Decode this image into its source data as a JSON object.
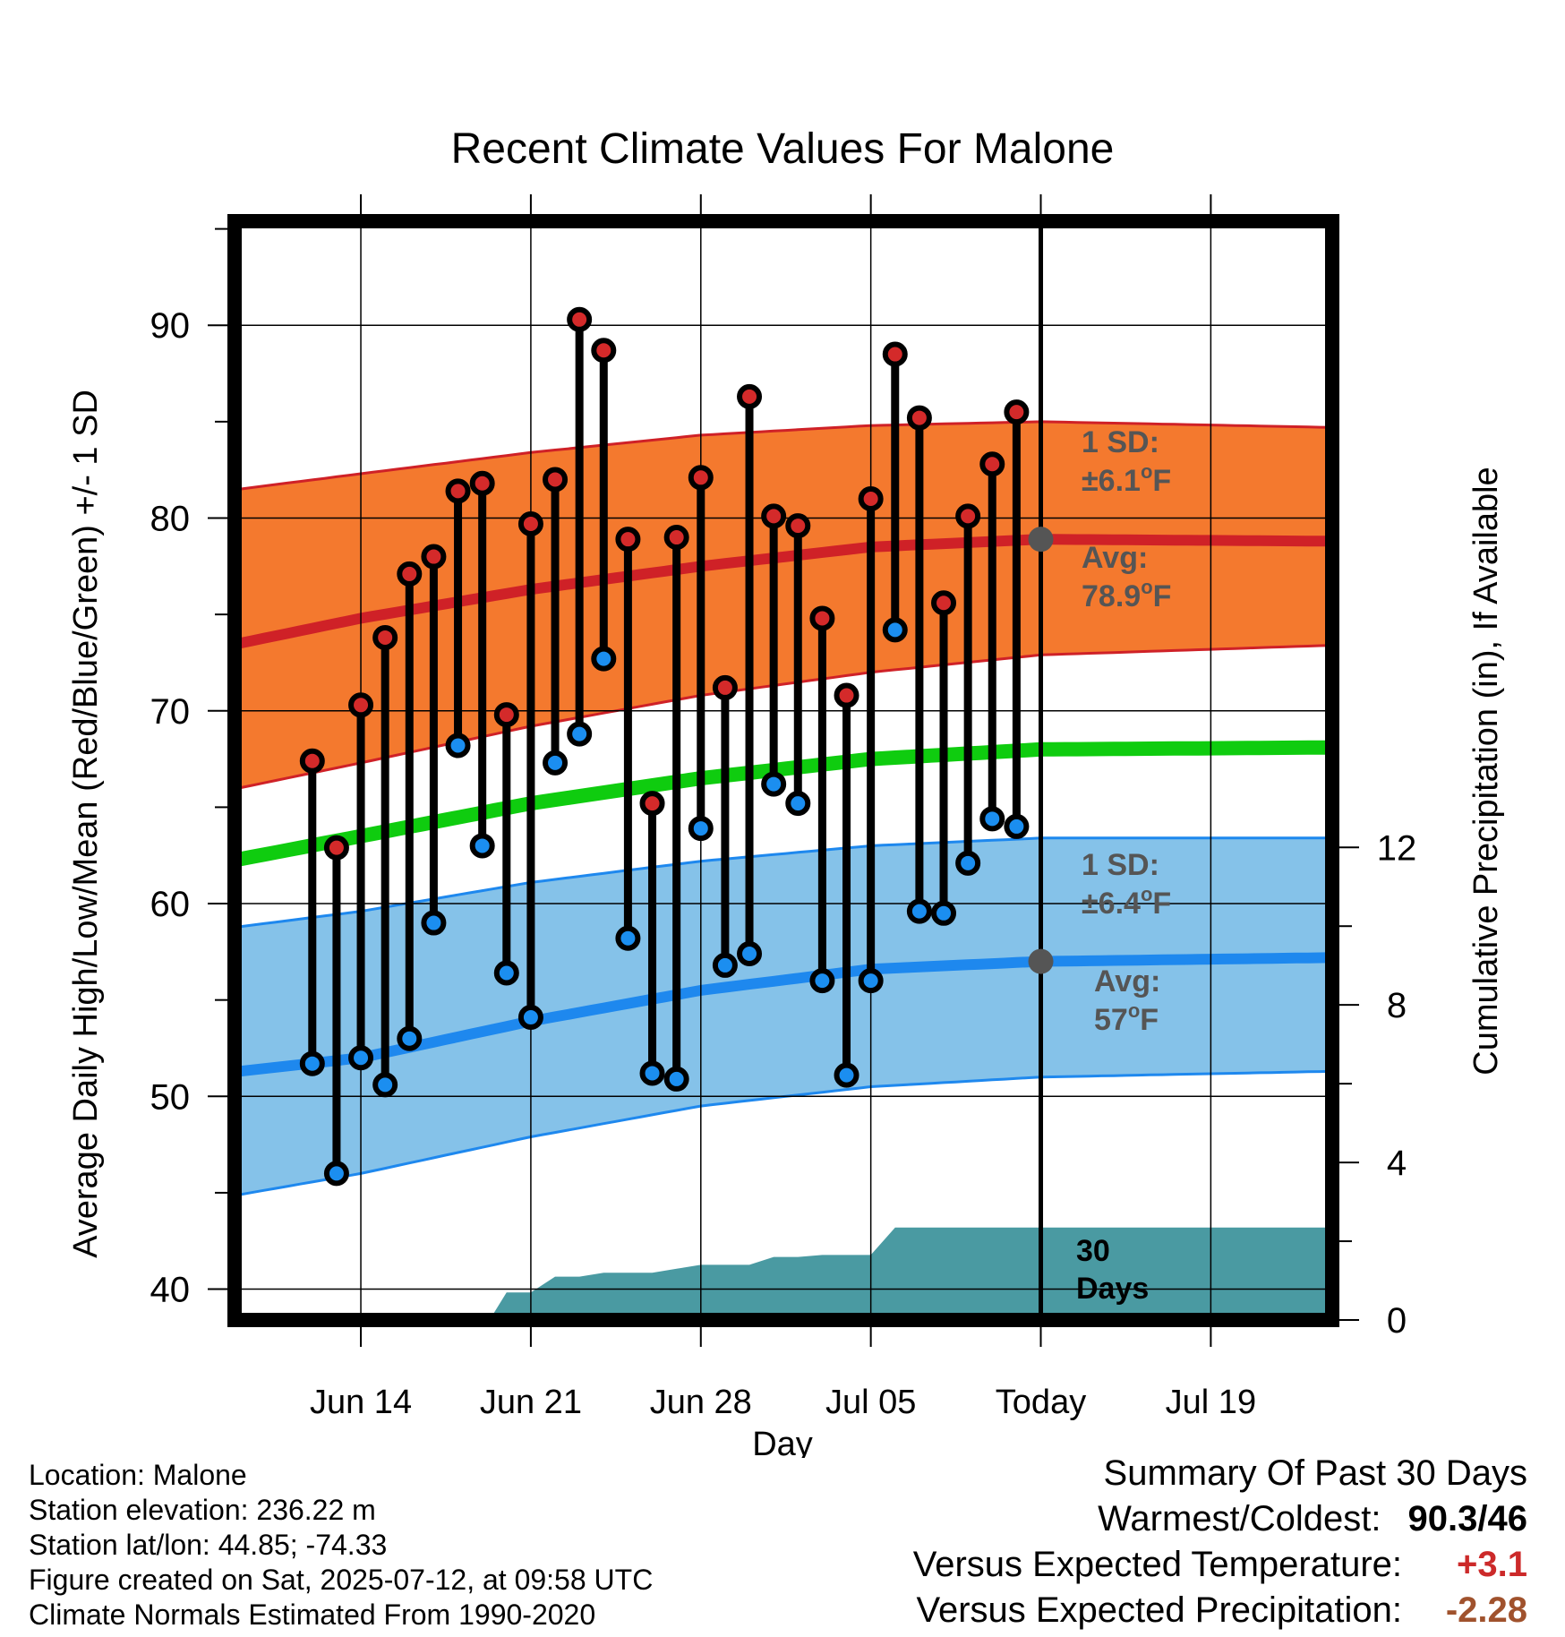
{
  "chart_data": {
    "type": "line",
    "title": "Recent Climate Values For Malone",
    "xlabel": "Day",
    "ylabel_left": "Average Daily High/Low/Mean (Red/Blue/Green) +/- 1 SD",
    "ylabel_right": "Cumulative Precipitation (in), If Available",
    "x_range_days": [
      -33.2,
      12
    ],
    "ylim_left": [
      38.4,
      95.4
    ],
    "ylim_right": [
      0,
      27.9
    ],
    "x_ticks": [
      {
        "offset": -28,
        "label": "Jun 14"
      },
      {
        "offset": -21,
        "label": "Jun 21"
      },
      {
        "offset": -14,
        "label": "Jun 28"
      },
      {
        "offset": -7,
        "label": "Jul 05"
      },
      {
        "offset": 0,
        "label": "Today"
      },
      {
        "offset": 7,
        "label": "Jul 19"
      }
    ],
    "y_ticks_left": [
      40,
      50,
      60,
      70,
      80,
      90
    ],
    "y_ticks_right": [
      0,
      4,
      8,
      12
    ],
    "grid": true,
    "today_offset": 0,
    "colors": {
      "high_band": "#f4792e",
      "high_line": "#cf2127",
      "low_band": "#85c2e9",
      "low_line": "#1e88ee",
      "mean_line": "#0fcc0f",
      "precip_fill": "#4a9aa2",
      "high_dot": "#d42a2a",
      "low_dot": "#1b8ef0",
      "avg_marker": "#555555",
      "warm_value": "#cc2a2a",
      "precip_value": "#a0522d"
    },
    "normals": {
      "offsets": [
        -33,
        -28,
        -21,
        -14,
        -7,
        0,
        12
      ],
      "high_avg": [
        73.5,
        74.8,
        76.3,
        77.5,
        78.5,
        78.9,
        78.8
      ],
      "high_upper": [
        81.5,
        82.3,
        83.4,
        84.3,
        84.8,
        85.0,
        84.7
      ],
      "high_lower": [
        66.0,
        67.3,
        69.2,
        70.8,
        72.0,
        72.9,
        73.4
      ],
      "mean": [
        62.3,
        63.5,
        65.2,
        66.5,
        67.5,
        68.0,
        68.1
      ],
      "low_avg": [
        51.3,
        52.0,
        53.9,
        55.5,
        56.6,
        57.0,
        57.2
      ],
      "low_upper": [
        58.8,
        59.6,
        61.1,
        62.2,
        63.0,
        63.4,
        63.4
      ],
      "low_lower": [
        44.9,
        46.0,
        47.9,
        49.5,
        50.5,
        51.0,
        51.3
      ]
    },
    "series": [
      {
        "name": "High",
        "x": [
          -30,
          -29,
          -28,
          -27,
          -26,
          -25,
          -24,
          -23,
          -22,
          -21,
          -20,
          -19,
          -18,
          -17,
          -16,
          -15,
          -14,
          -13,
          -12,
          -11,
          -10,
          -9,
          -8,
          -7,
          -6,
          -5,
          -4,
          -3,
          -2,
          -1
        ],
        "values": [
          67.4,
          62.9,
          70.3,
          73.8,
          77.1,
          78.0,
          81.4,
          81.8,
          69.8,
          79.7,
          82.0,
          90.3,
          88.7,
          78.9,
          65.2,
          79.0,
          82.1,
          71.2,
          86.3,
          80.1,
          79.6,
          74.8,
          70.8,
          81.0,
          88.5,
          85.2,
          75.6,
          80.1,
          82.8,
          85.5
        ]
      },
      {
        "name": "Low",
        "x": [
          -30,
          -29,
          -28,
          -27,
          -26,
          -25,
          -24,
          -23,
          -22,
          -21,
          -20,
          -19,
          -18,
          -17,
          -16,
          -15,
          -14,
          -13,
          -12,
          -11,
          -10,
          -9,
          -8,
          -7,
          -6,
          -5,
          -4,
          -3,
          -2,
          -1
        ],
        "values": [
          51.7,
          46.0,
          52.0,
          50.6,
          53.0,
          59.0,
          68.2,
          63.0,
          56.4,
          54.1,
          67.3,
          68.8,
          72.7,
          58.2,
          51.2,
          50.9,
          63.9,
          56.8,
          57.4,
          66.2,
          65.2,
          56.0,
          51.1,
          56.0,
          74.2,
          59.6,
          59.5,
          62.1,
          64.4,
          64.0
        ]
      },
      {
        "name": "Cumulative Precipitation",
        "x": [
          -22.7,
          -22,
          -21,
          -20,
          -19,
          -18,
          -17,
          -16,
          -15,
          -14,
          -13,
          -12,
          -11,
          -10,
          -9,
          -8,
          -7,
          -6,
          -5,
          12
        ],
        "values": [
          0,
          0.7,
          0.7,
          1.1,
          1.1,
          1.2,
          1.2,
          1.2,
          1.3,
          1.4,
          1.4,
          1.4,
          1.6,
          1.6,
          1.65,
          1.65,
          1.65,
          2.35,
          2.35,
          2.35
        ]
      }
    ],
    "annotations": {
      "high_sd_label": "1 SD:",
      "high_sd_value": "±6.1",
      "high_avg_label": "Avg:",
      "high_avg_value": "78.9",
      "low_sd_label": "1 SD:",
      "low_sd_value": "±6.4",
      "low_avg_label": "Avg:",
      "low_avg_value": "57",
      "degree_unit": "o",
      "temp_unit": "F",
      "precip_days_line1": "30",
      "precip_days_line2": "Days"
    },
    "today_high_avg": 78.9,
    "today_low_avg": 57
  },
  "footer": {
    "location": "Location: Malone",
    "elevation": "Station elevation: 236.22 m",
    "latlon": "Station lat/lon: 44.85; -74.33",
    "created": "Figure created on Sat, 2025-07-12, at 09:58 UTC",
    "normals": "Climate Normals Estimated From 1990-2020"
  },
  "summary": {
    "title": "Summary Of Past 30 Days",
    "warmest_label": "Warmest/Coldest:",
    "warmest_value": "90.3/46",
    "temp_label": "Versus Expected Temperature:",
    "temp_value": "+3.1",
    "precip_label": "Versus Expected Precipitation:",
    "precip_value": "-2.28"
  }
}
